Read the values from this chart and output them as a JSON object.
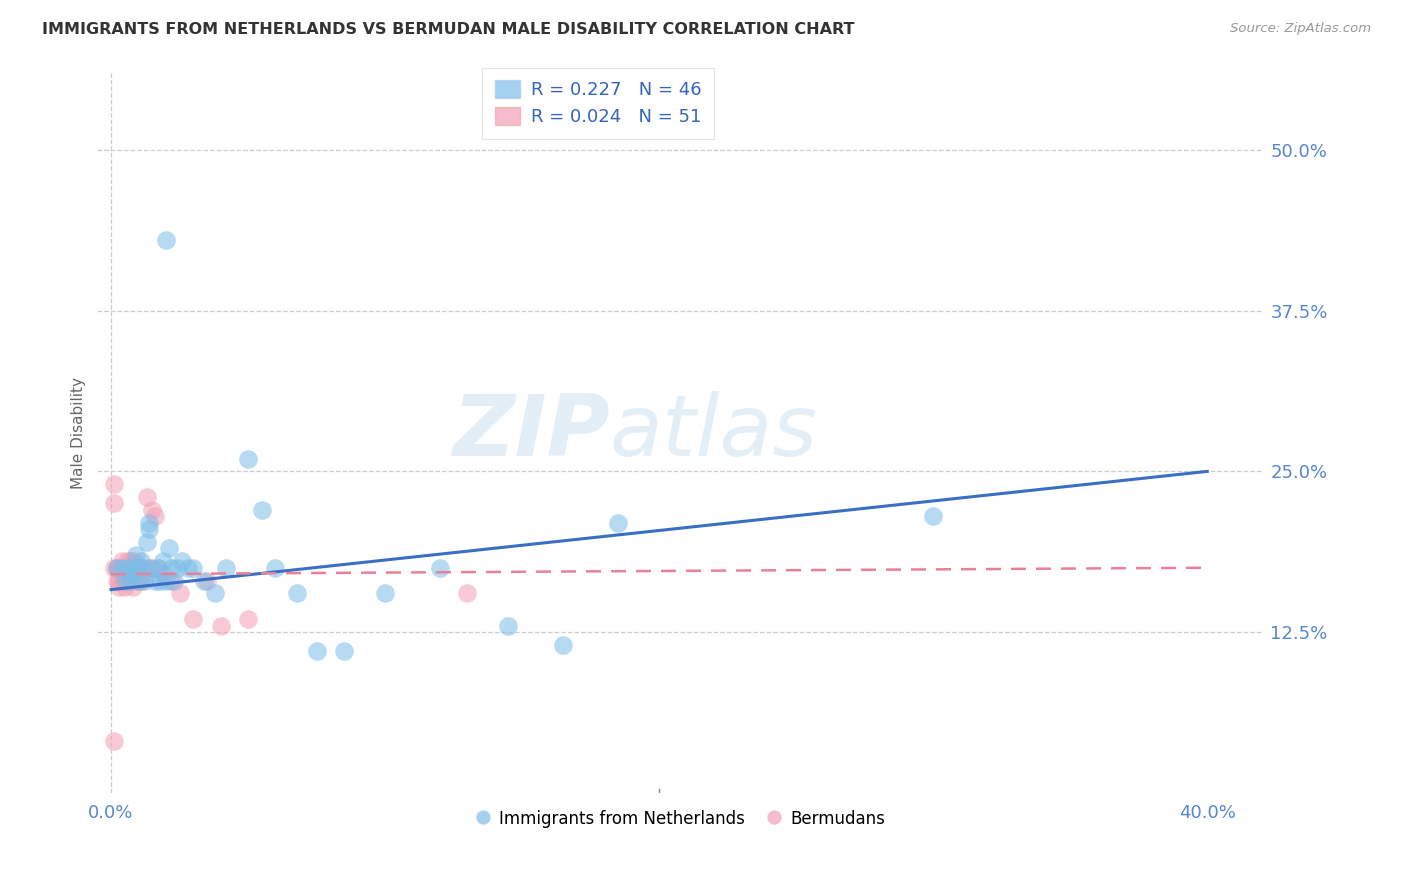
{
  "title": "IMMIGRANTS FROM NETHERLANDS VS BERMUDAN MALE DISABILITY CORRELATION CHART",
  "source": "Source: ZipAtlas.com",
  "ylabel": "Male Disability",
  "ytick_labels": [
    "12.5%",
    "25.0%",
    "37.5%",
    "50.0%"
  ],
  "ytick_values": [
    0.125,
    0.25,
    0.375,
    0.5
  ],
  "xtick_labels": [
    "0.0%",
    "40.0%"
  ],
  "xtick_values": [
    0.0,
    0.4
  ],
  "xlim": [
    -0.005,
    0.42
  ],
  "ylim": [
    0.0,
    0.56
  ],
  "legend1_R": "0.227",
  "legend1_N": "46",
  "legend2_R": "0.024",
  "legend2_N": "51",
  "blue_color": "#7bbde8",
  "pink_color": "#f4a0b5",
  "trend_blue": "#3a6fc4",
  "trend_pink": "#e88098",
  "watermark_zip": "ZIP",
  "watermark_atlas": "atlas",
  "blue_scatter_x": [
    0.002,
    0.004,
    0.005,
    0.006,
    0.007,
    0.007,
    0.008,
    0.009,
    0.009,
    0.01,
    0.01,
    0.011,
    0.012,
    0.012,
    0.013,
    0.014,
    0.014,
    0.015,
    0.016,
    0.017,
    0.018,
    0.019,
    0.02,
    0.021,
    0.022,
    0.023,
    0.024,
    0.026,
    0.028,
    0.03,
    0.034,
    0.038,
    0.042,
    0.05,
    0.055,
    0.06,
    0.068,
    0.075,
    0.085,
    0.1,
    0.12,
    0.145,
    0.165,
    0.185,
    0.3,
    0.02
  ],
  "blue_scatter_y": [
    0.175,
    0.175,
    0.165,
    0.175,
    0.17,
    0.165,
    0.175,
    0.17,
    0.185,
    0.175,
    0.165,
    0.18,
    0.175,
    0.165,
    0.195,
    0.21,
    0.205,
    0.175,
    0.165,
    0.175,
    0.165,
    0.18,
    0.165,
    0.19,
    0.175,
    0.165,
    0.175,
    0.18,
    0.175,
    0.175,
    0.165,
    0.155,
    0.175,
    0.26,
    0.22,
    0.175,
    0.155,
    0.11,
    0.11,
    0.155,
    0.175,
    0.13,
    0.115,
    0.21,
    0.215,
    0.43
  ],
  "pink_scatter_x": [
    0.001,
    0.001,
    0.001,
    0.002,
    0.002,
    0.002,
    0.003,
    0.003,
    0.003,
    0.003,
    0.004,
    0.004,
    0.004,
    0.004,
    0.005,
    0.005,
    0.005,
    0.006,
    0.006,
    0.006,
    0.006,
    0.007,
    0.007,
    0.007,
    0.007,
    0.008,
    0.008,
    0.008,
    0.009,
    0.009,
    0.01,
    0.01,
    0.01,
    0.011,
    0.011,
    0.012,
    0.013,
    0.013,
    0.014,
    0.015,
    0.016,
    0.017,
    0.019,
    0.022,
    0.025,
    0.03,
    0.035,
    0.04,
    0.05,
    0.13,
    0.001
  ],
  "pink_scatter_y": [
    0.175,
    0.24,
    0.225,
    0.175,
    0.175,
    0.165,
    0.175,
    0.165,
    0.175,
    0.16,
    0.175,
    0.17,
    0.165,
    0.18,
    0.175,
    0.165,
    0.16,
    0.18,
    0.175,
    0.165,
    0.175,
    0.18,
    0.17,
    0.175,
    0.165,
    0.18,
    0.175,
    0.16,
    0.175,
    0.17,
    0.165,
    0.175,
    0.165,
    0.175,
    0.165,
    0.17,
    0.175,
    0.23,
    0.175,
    0.22,
    0.215,
    0.175,
    0.17,
    0.165,
    0.155,
    0.135,
    0.165,
    0.13,
    0.135,
    0.155,
    0.04
  ],
  "blue_trend_x0": 0.0,
  "blue_trend_y0": 0.158,
  "blue_trend_x1": 0.4,
  "blue_trend_y1": 0.25,
  "pink_trend_x0": 0.0,
  "pink_trend_y0": 0.17,
  "pink_trend_x1": 0.4,
  "pink_trend_y1": 0.175,
  "grid_color": "#cccccc",
  "axis_label_color": "#5588cc",
  "title_color": "#333333",
  "source_color": "#999999",
  "ylabel_color": "#666666"
}
